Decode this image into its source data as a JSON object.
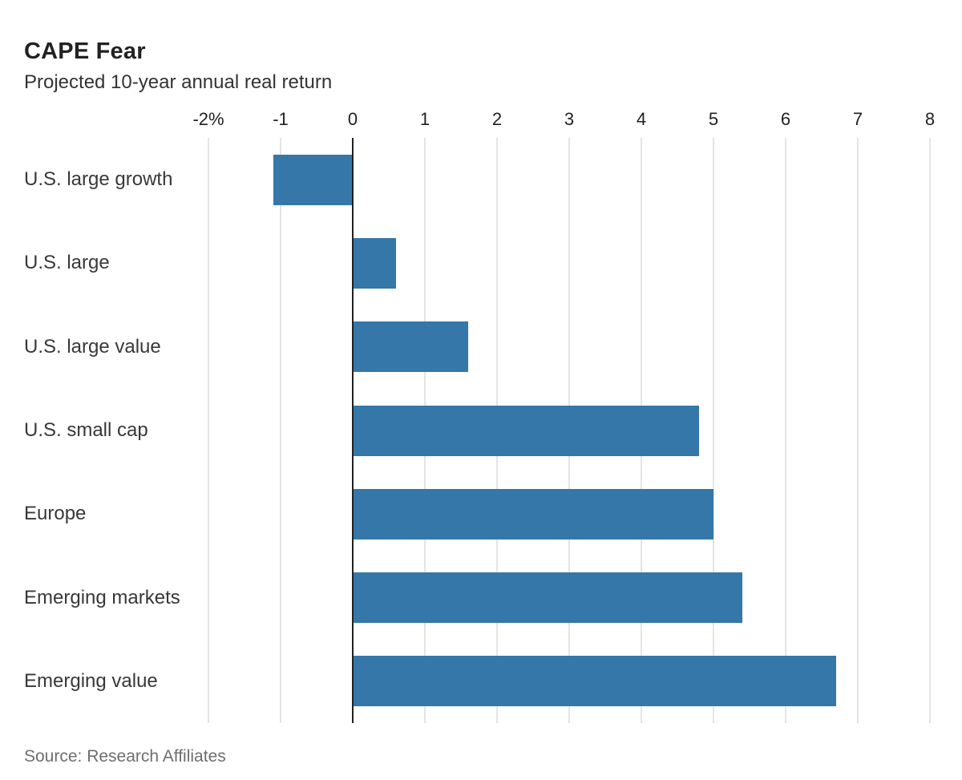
{
  "header": {
    "title": "CAPE Fear",
    "subtitle": "Projected 10-year annual real return"
  },
  "footer": {
    "source": "Source: Research Affiliates"
  },
  "colors": {
    "bar": "#3477a8",
    "grid": "#e4e4e4",
    "zero_line": "#222222",
    "title_text": "#222222",
    "label_text": "#383838",
    "source_text": "#6e6e6e"
  },
  "chart_data": {
    "type": "bar",
    "orientation": "horizontal",
    "title": "CAPE Fear",
    "subtitle": "Projected 10-year annual real return",
    "xlabel": "",
    "ylabel": "",
    "categories": [
      "U.S. large growth",
      "U.S. large",
      "U.S. large value",
      "U.S. small cap",
      "Europe",
      "Emerging markets",
      "Emerging value"
    ],
    "values": [
      -1.1,
      0.6,
      1.6,
      4.8,
      5.0,
      5.4,
      6.7
    ],
    "unit": "percent",
    "xlim": [
      -2,
      8
    ],
    "xticks": [
      -2,
      -1,
      0,
      1,
      2,
      3,
      4,
      5,
      6,
      7,
      8
    ],
    "xtick_labels": [
      "-2%",
      "-1",
      "0",
      "1",
      "2",
      "3",
      "4",
      "5",
      "6",
      "7",
      "8"
    ],
    "grid": true,
    "legend_position": "none",
    "bar_color": "#3477a8",
    "source": "Source: Research Affiliates"
  }
}
